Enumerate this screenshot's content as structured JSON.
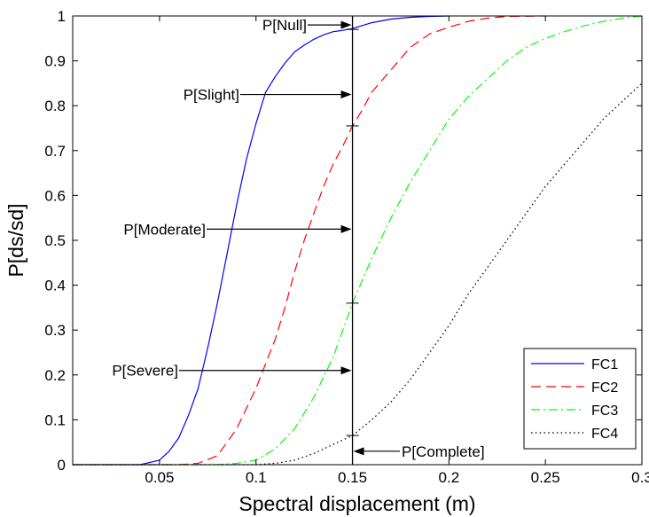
{
  "chart_data": {
    "type": "line",
    "title": "",
    "xlabel": "Spectral displacement (m)",
    "ylabel": "P[ds/sd]",
    "xlim": [
      0.005,
      0.3
    ],
    "ylim": [
      0,
      1
    ],
    "xticks": [
      0.05,
      0.1,
      0.15,
      0.2,
      0.25,
      0.3
    ],
    "xtick_labels": [
      "0.05",
      "0.1",
      "0.15",
      "0.2",
      "0.25",
      "0.3"
    ],
    "yticks": [
      0,
      0.1,
      0.2,
      0.3,
      0.4,
      0.5,
      0.6,
      0.7,
      0.8,
      0.9,
      1
    ],
    "ytick_labels": [
      "0",
      "0.1",
      "0.2",
      "0.3",
      "0.4",
      "0.5",
      "0.6",
      "0.7",
      "0.8",
      "0.9",
      "1"
    ],
    "grid": false,
    "legend_position": "bottom-right",
    "series": [
      {
        "name": "FC1",
        "color": "#0000ff",
        "style": "solid",
        "x": [
          0.005,
          0.04,
          0.05,
          0.055,
          0.06,
          0.065,
          0.07,
          0.075,
          0.08,
          0.085,
          0.09,
          0.095,
          0.1,
          0.105,
          0.11,
          0.115,
          0.12,
          0.125,
          0.13,
          0.135,
          0.14,
          0.145,
          0.15,
          0.16,
          0.17,
          0.18,
          0.19,
          0.2
        ],
        "y": [
          0,
          0,
          0.01,
          0.03,
          0.06,
          0.11,
          0.17,
          0.26,
          0.36,
          0.47,
          0.58,
          0.68,
          0.76,
          0.83,
          0.865,
          0.895,
          0.92,
          0.935,
          0.948,
          0.958,
          0.965,
          0.968,
          0.972,
          0.985,
          0.993,
          0.997,
          0.999,
          1.0
        ]
      },
      {
        "name": "FC2",
        "color": "#ff0000",
        "style": "dashed",
        "x": [
          0.005,
          0.06,
          0.07,
          0.08,
          0.09,
          0.1,
          0.11,
          0.115,
          0.12,
          0.125,
          0.13,
          0.135,
          0.14,
          0.145,
          0.15,
          0.155,
          0.16,
          0.17,
          0.18,
          0.19,
          0.2,
          0.21,
          0.22,
          0.23,
          0.25
        ],
        "y": [
          0,
          0,
          0.003,
          0.02,
          0.08,
          0.17,
          0.28,
          0.35,
          0.43,
          0.5,
          0.56,
          0.62,
          0.67,
          0.71,
          0.755,
          0.79,
          0.83,
          0.88,
          0.93,
          0.96,
          0.975,
          0.988,
          0.995,
          0.999,
          1.0
        ]
      },
      {
        "name": "FC3",
        "color": "#00ff00",
        "style": "dashdot",
        "x": [
          0.005,
          0.08,
          0.09,
          0.1,
          0.11,
          0.12,
          0.13,
          0.14,
          0.15,
          0.16,
          0.17,
          0.18,
          0.19,
          0.2,
          0.21,
          0.22,
          0.23,
          0.24,
          0.25,
          0.26,
          0.27,
          0.28,
          0.29,
          0.3
        ],
        "y": [
          0,
          0,
          0.003,
          0.01,
          0.035,
          0.08,
          0.15,
          0.24,
          0.36,
          0.46,
          0.55,
          0.63,
          0.7,
          0.77,
          0.82,
          0.86,
          0.9,
          0.93,
          0.95,
          0.965,
          0.978,
          0.988,
          0.995,
          1.0
        ]
      },
      {
        "name": "FC4",
        "color": "#000000",
        "style": "dotted",
        "x": [
          0.005,
          0.1,
          0.11,
          0.12,
          0.13,
          0.14,
          0.15,
          0.16,
          0.17,
          0.18,
          0.19,
          0.2,
          0.21,
          0.22,
          0.23,
          0.24,
          0.25,
          0.26,
          0.27,
          0.28,
          0.29,
          0.3
        ],
        "y": [
          0,
          0,
          0.003,
          0.01,
          0.025,
          0.045,
          0.065,
          0.1,
          0.14,
          0.19,
          0.25,
          0.31,
          0.38,
          0.44,
          0.5,
          0.56,
          0.62,
          0.67,
          0.72,
          0.77,
          0.81,
          0.85
        ]
      }
    ],
    "reference_line": {
      "x": 0.15,
      "color": "#000000"
    },
    "marker_ticks_y": [
      0.97,
      0.755,
      0.36,
      0.065
    ],
    "annotations": [
      {
        "label": "P[Null]",
        "y": 0.98
      },
      {
        "label": "P[Slight]",
        "y": 0.825
      },
      {
        "label": "P[Moderate]",
        "y": 0.525
      },
      {
        "label": "P[Severe]",
        "y": 0.21
      },
      {
        "label": "P[Complete]",
        "y": 0.03
      }
    ]
  }
}
